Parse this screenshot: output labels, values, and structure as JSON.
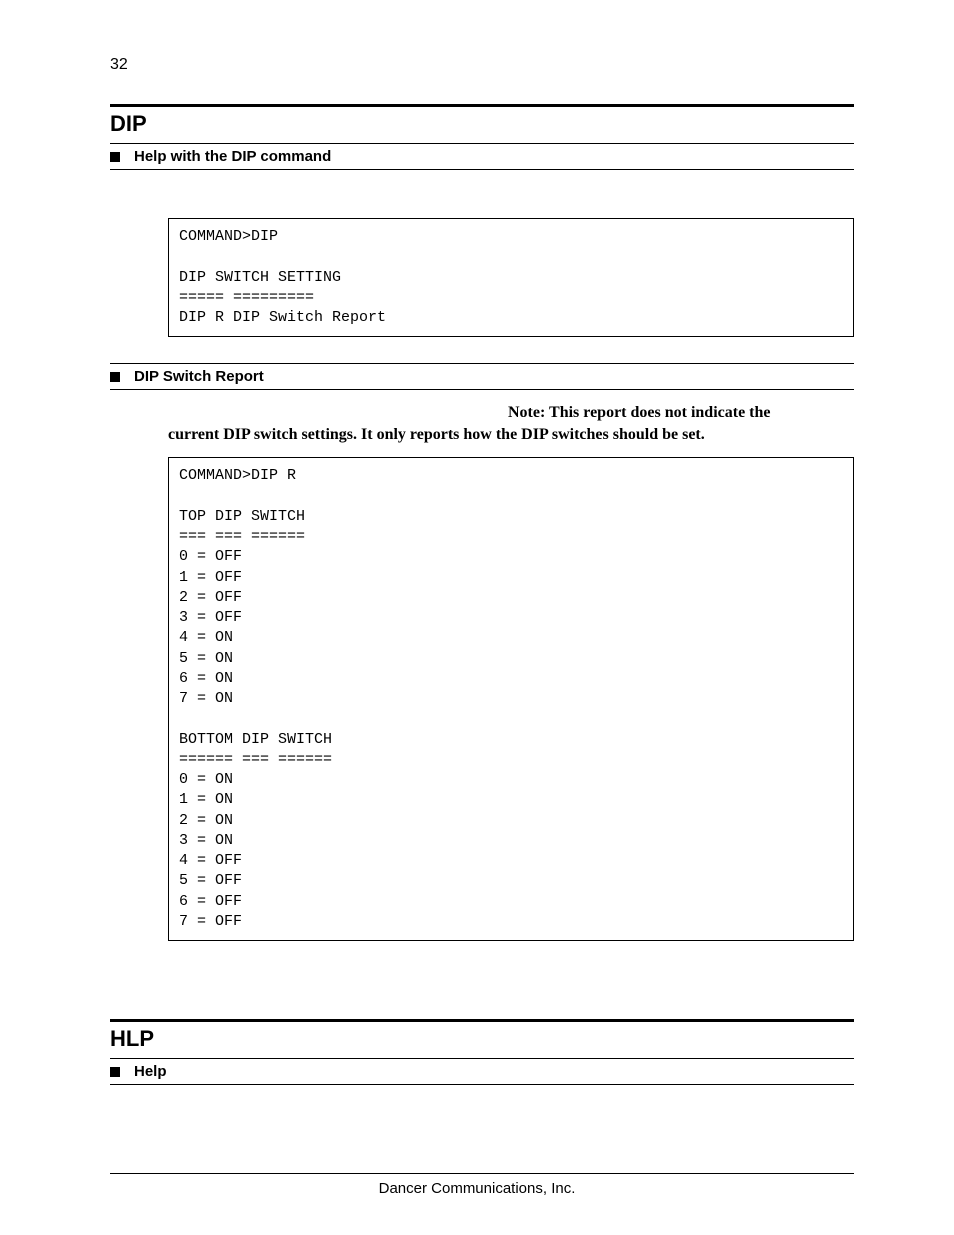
{
  "page_number": "32",
  "sections": {
    "dip": {
      "title": "DIP",
      "help": {
        "label": "Help with the DIP command",
        "code": "COMMAND>DIP\n\nDIP SWITCH SETTING\n===== =========\nDIP R DIP Switch Report"
      },
      "report": {
        "label": "DIP Switch Report",
        "note_lead": "Note: This report does not indicate the",
        "note_rest": "current DIP switch settings.  It only reports how the DIP switches should be set.",
        "code": "COMMAND>DIP R\n\nTOP DIP SWITCH\n=== === ======\n0 = OFF\n1 = OFF\n2 = OFF\n3 = OFF\n4 = ON\n5 = ON\n6 = ON\n7 = ON\n\nBOTTOM DIP SWITCH\n====== === ======\n0 = ON\n1 = ON\n2 = ON\n3 = ON\n4 = OFF\n5 = OFF\n6 = OFF\n7 = OFF\n"
      }
    },
    "hlp": {
      "title": "HLP",
      "help": {
        "label": "Help"
      }
    }
  },
  "footer": "Dancer Communications, Inc."
}
